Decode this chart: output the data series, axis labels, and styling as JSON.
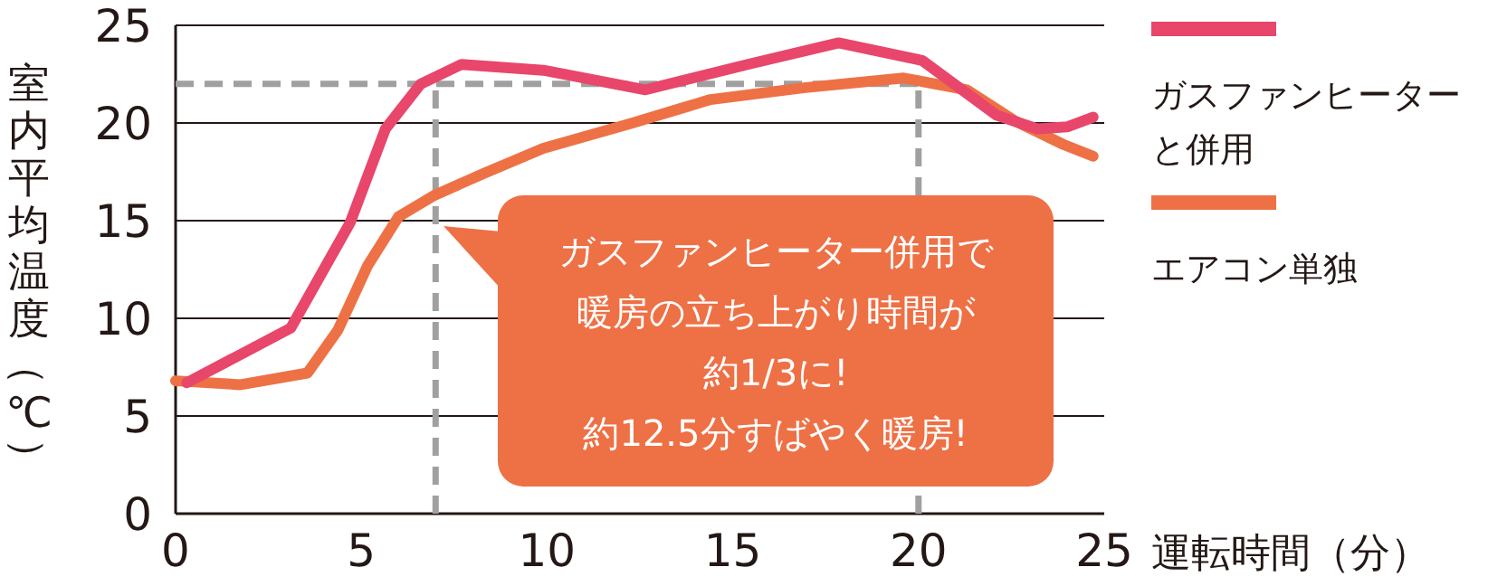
{
  "chart_data": {
    "type": "line",
    "xlabel": "運転時間（分）",
    "ylabel": "室内平均温度（℃）",
    "xlim": [
      0,
      25
    ],
    "ylim": [
      0,
      25
    ],
    "xticks": [
      0,
      5,
      10,
      15,
      20,
      25
    ],
    "yticks": [
      0,
      5,
      10,
      15,
      20,
      25
    ],
    "grid": "y",
    "legend": "right",
    "line_style": "solid",
    "series": [
      {
        "name": "ガスファンヒーターと併用",
        "color": "#e8466a",
        "x": [
          0.3,
          3.1,
          4.7,
          5.65,
          6.6,
          7.7,
          9.9,
          12.65,
          15.4,
          17.85,
          20.1,
          22.1,
          23.2,
          24.0,
          24.7
        ],
        "values": [
          6.7,
          9.5,
          14.9,
          19.7,
          22.0,
          23.0,
          22.7,
          21.7,
          23.0,
          24.1,
          23.2,
          20.4,
          19.7,
          19.8,
          20.3
        ]
      },
      {
        "name": "エアコン単独",
        "color": "#ee7145",
        "x": [
          0,
          1.75,
          3.55,
          4.37,
          5.17,
          6.0,
          6.97,
          8.27,
          9.9,
          12.3,
          14.4,
          16.9,
          19.6,
          21.3,
          22.6,
          23.9,
          24.7
        ],
        "values": [
          6.8,
          6.6,
          7.2,
          9.4,
          12.7,
          15.2,
          16.3,
          17.4,
          18.7,
          20.0,
          21.2,
          21.8,
          22.3,
          21.7,
          20.1,
          18.9,
          18.3
        ]
      }
    ],
    "ref_lines": [
      {
        "axis": "y",
        "value": 22,
        "color": "#a0a0a0",
        "line_style": "dashed"
      },
      {
        "axis": "x",
        "value": 7,
        "color": "#a0a0a0",
        "line_style": "dashed"
      },
      {
        "axis": "x",
        "value": 20,
        "color": "#a0a0a0",
        "line_style": "dashed"
      }
    ],
    "annotations": [
      "ガスファンヒーター併用で",
      "暖房の立ち上がり時間が",
      "約1/3に!",
      "約12.5分すばやく暖房!"
    ]
  }
}
